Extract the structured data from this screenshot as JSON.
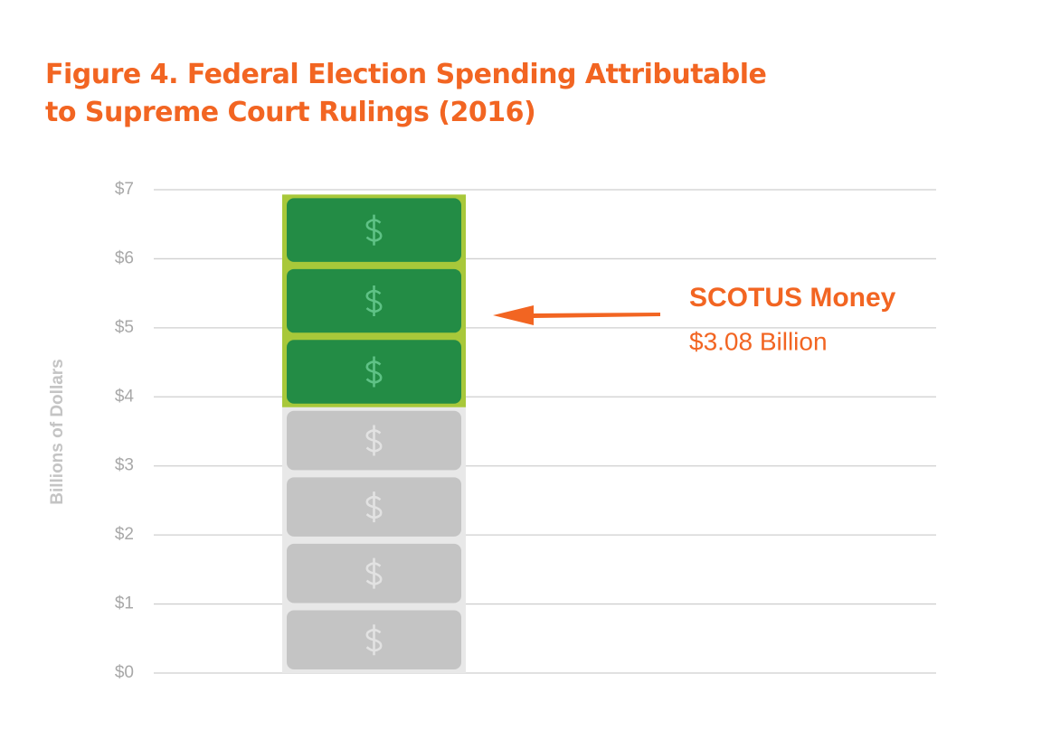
{
  "chart_data": {
    "type": "pictograph-stack",
    "title": "Figure 4. Federal Election Spending Attributable to Supreme Court Rulings (2016)",
    "y_label": "Billions of Dollars",
    "categories": [
      null
    ],
    "series": [
      {
        "color": "#c4c4c4",
        "values": [
          3.85
        ]
      },
      {
        "name": "SCOTUS Money",
        "color": "#238c45",
        "values": [
          3.08
        ],
        "value_labels": [
          "$3.08 Billion"
        ]
      }
    ],
    "ylim": [
      0,
      7
    ],
    "yticks": [
      {
        "value": 0,
        "label": "$0"
      },
      {
        "value": 1,
        "label": "$1"
      },
      {
        "value": 2,
        "label": "$2"
      },
      {
        "value": 3,
        "label": "$3"
      },
      {
        "value": 4,
        "label": "$4"
      },
      {
        "value": 5,
        "label": "$5"
      },
      {
        "value": 6,
        "label": "$6"
      },
      {
        "value": 7,
        "label": "$7"
      }
    ],
    "grid": true
  }
}
